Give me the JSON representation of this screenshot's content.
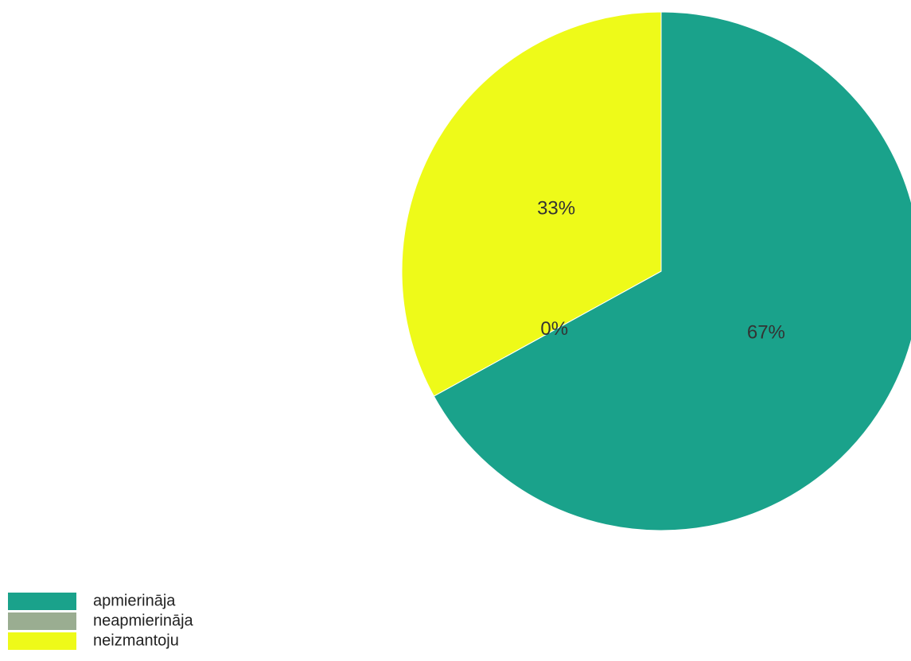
{
  "chart_data": {
    "type": "pie",
    "categories": [
      "apmierināja",
      "neapmierināja",
      "neizmantoju"
    ],
    "values": [
      67,
      0,
      33
    ],
    "labels": [
      "67%",
      "0%",
      "33%"
    ],
    "colors": [
      "#1aa28b",
      "#9aad91",
      "#eefa19"
    ],
    "legend_position": "bottom-left"
  }
}
